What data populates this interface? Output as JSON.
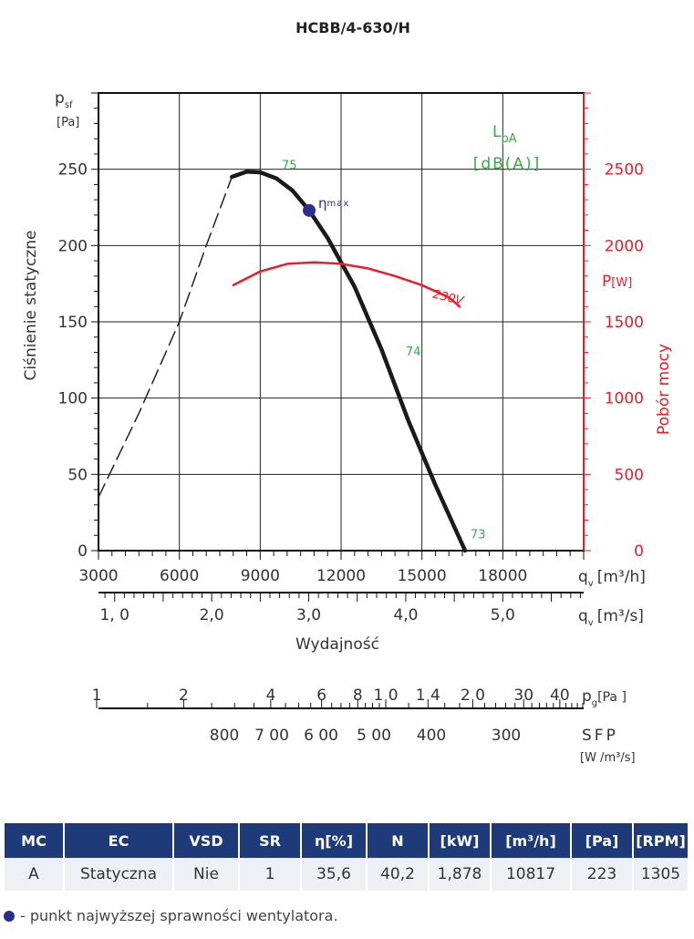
{
  "chart_data": {
    "type": "line",
    "title": "HCBB/4-630/H",
    "left_axis": {
      "label": "Ciśnienie statyczne",
      "symbol": "p",
      "symbol_sub": "sf",
      "unit": "[Pa]",
      "ticks": [
        0,
        50,
        100,
        150,
        200,
        250
      ],
      "range": [
        0,
        300
      ]
    },
    "right_axis": {
      "label": "Pobór mocy",
      "symbol": "P",
      "unit": "[W]",
      "ticks": [
        0,
        500,
        1000,
        1500,
        2000,
        2500
      ],
      "range": [
        0,
        3000
      ]
    },
    "x_axis_m3h": {
      "symbol": "q",
      "sub": "v",
      "unit": "[m³/h]",
      "ticks": [
        3000,
        6000,
        9000,
        12000,
        15000,
        18000
      ],
      "range": [
        3000,
        21000
      ]
    },
    "x_axis_m3s": {
      "symbol": "q",
      "sub": "v",
      "unit": "[m³/s]",
      "label": "Wydajność",
      "ticks": [
        1.0,
        2.0,
        3.0,
        4.0,
        5.0
      ],
      "tick_labels": [
        "1, 0",
        "2,0",
        "3,0",
        "4,0",
        "5,0"
      ]
    },
    "pg_axis": {
      "symbol": "p",
      "sub": "g",
      "unit": "[Pa ]",
      "labels": [
        1,
        2,
        4,
        6,
        8,
        10,
        14,
        20,
        30,
        40
      ],
      "label_texts": [
        "1",
        "2",
        "4",
        "6",
        "8",
        "1 0",
        "1 4",
        "2 0",
        "30",
        "40"
      ]
    },
    "sfp_axis": {
      "label": "SFP",
      "unit": "[W /m³/s]",
      "labels": [
        800,
        700,
        600,
        500,
        400,
        300
      ],
      "label_texts": [
        "800",
        "7 00",
        "6 00",
        "5 00",
        "400",
        "300"
      ]
    },
    "grid": true,
    "sound_label": {
      "line1": "L",
      "sub": "pA",
      "line2": "[dB(A)]"
    },
    "series": [
      {
        "name": "",
        "role": "pressure-unstable",
        "style": "dashed",
        "axis": "left",
        "x": [
          3000,
          4500,
          6000,
          7000,
          7950
        ],
        "y": [
          35,
          90,
          150,
          200,
          245
        ]
      },
      {
        "name": "",
        "role": "pressure",
        "style": "solid",
        "axis": "left",
        "x": [
          7950,
          8500,
          9000,
          9600,
          10200,
          10817,
          11500,
          12500,
          13500,
          14500,
          15500,
          16600
        ],
        "y": [
          245,
          248.5,
          248,
          244,
          236,
          223,
          205,
          173,
          132,
          85,
          43,
          0
        ]
      },
      {
        "name": "230V",
        "role": "power",
        "style": "solid",
        "axis": "right",
        "x": [
          8000,
          9000,
          10000,
          11000,
          12000,
          13000,
          14000,
          15000,
          16000,
          16400
        ],
        "y": [
          1740,
          1830,
          1880,
          1890,
          1880,
          1850,
          1800,
          1740,
          1660,
          1600
        ]
      }
    ],
    "sound_marks": [
      {
        "value": "75",
        "x": 9800,
        "y": 250
      },
      {
        "value": "74",
        "x": 14400,
        "y": 128
      },
      {
        "value": "73",
        "x": 16800,
        "y": 8
      }
    ],
    "eta_max": {
      "label": "η",
      "label_sub": "max",
      "x": 10817,
      "y": 223
    }
  },
  "table": {
    "headers": [
      "MC",
      "EC",
      "VSD",
      "SR",
      "η[%]",
      "N",
      "[kW]",
      "[m³/h]",
      "[Pa]",
      "[RPM]"
    ],
    "row": [
      "A",
      "Statyczna",
      "Nie",
      "1",
      "35,6",
      "40,2",
      "1,878",
      "10817",
      "223",
      "1305"
    ]
  },
  "footnote": "- punkt najwyższej sprawności wentylatora.",
  "colors": {
    "pressure": "#1a1a1a",
    "power": "#e4202a",
    "sound": "#3aa845",
    "eta": "#2a2f8f",
    "header": "#1f3a78"
  }
}
